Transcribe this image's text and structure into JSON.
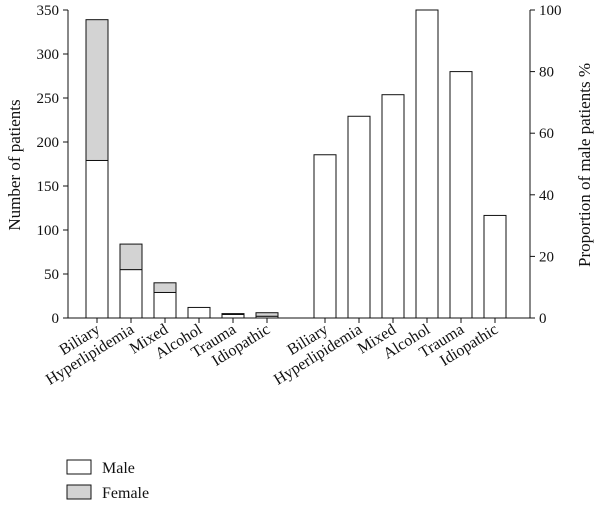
{
  "chart_data": {
    "type": "bar",
    "left_panel": {
      "categories": [
        "Biliary",
        "Hyperlipidemia",
        "Mixed",
        "Alcohol",
        "Trauma",
        "Idiopathic"
      ],
      "series": [
        {
          "name": "Male",
          "values": [
            179,
            55,
            29,
            12,
            4,
            2
          ]
        },
        {
          "name": "Female",
          "values": [
            160,
            29,
            11,
            0,
            1,
            4
          ]
        }
      ],
      "stacked": true,
      "ylabel": "Number of patients",
      "ylim": [
        0,
        350
      ],
      "yticks": [
        0,
        50,
        100,
        150,
        200,
        250,
        300,
        350
      ]
    },
    "right_panel": {
      "categories": [
        "Biliary",
        "Hyperlipidemia",
        "Mixed",
        "Alcohol",
        "Trauma",
        "Idiopathic"
      ],
      "values": [
        53,
        65.5,
        72.5,
        100,
        80,
        33.3
      ],
      "ylabel": "Proportion of male patients %",
      "ylim": [
        0,
        100
      ],
      "yticks": [
        0,
        20,
        40,
        60,
        80,
        100
      ]
    },
    "legend": {
      "placement": "bottom-left",
      "entries": [
        {
          "label": "Male",
          "color": "#ffffff"
        },
        {
          "label": "Female",
          "color": "#d3d3d3"
        }
      ]
    },
    "colors": {
      "male": "#ffffff",
      "female": "#d3d3d3",
      "stroke": "#111111"
    },
    "grid": false
  }
}
